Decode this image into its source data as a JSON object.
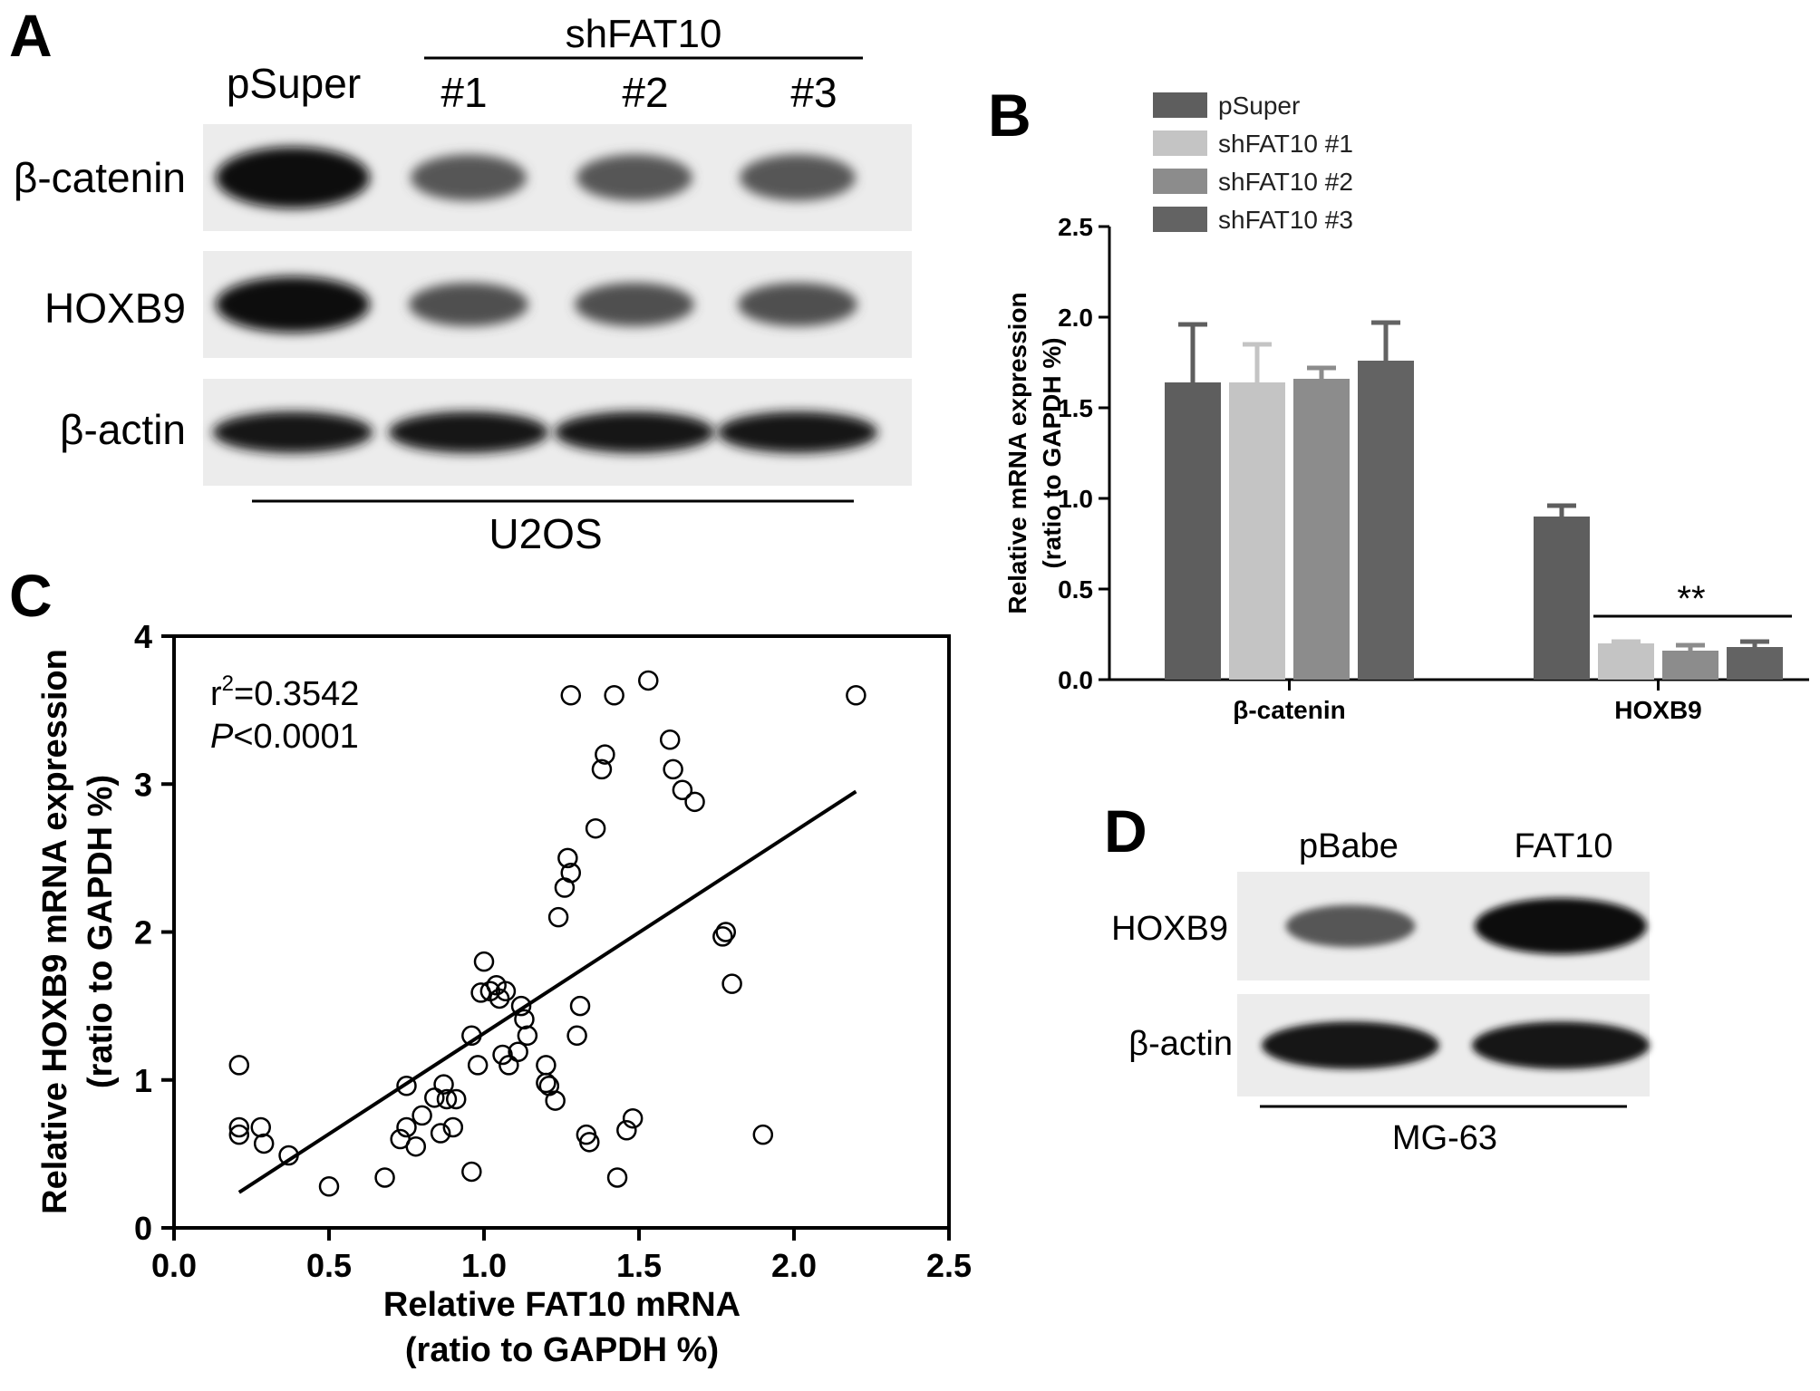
{
  "panels": {
    "A": {
      "letter": "A",
      "group_header": "shFAT10",
      "lanes": [
        "pSuper",
        "#1",
        "#2",
        "#3"
      ],
      "rows": [
        "β-catenin",
        "HOXB9",
        "β-actin"
      ],
      "cell_line": "U2OS",
      "band_intensity": {
        "β-catenin": [
          1.0,
          0.45,
          0.45,
          0.45
        ],
        "HOXB9": [
          1.0,
          0.5,
          0.5,
          0.5
        ],
        "β-actin": [
          0.9,
          0.9,
          0.9,
          0.9
        ]
      }
    },
    "B": {
      "letter": "B"
    },
    "C": {
      "letter": "C",
      "r2_prefix": "r",
      "r2_sup": "2",
      "r2_value": "=0.3542",
      "p_italic": "P",
      "p_value": "<0.0001"
    },
    "D": {
      "letter": "D",
      "lanes": [
        "pBabe",
        "FAT10"
      ],
      "rows": [
        "HOXB9",
        "β-actin"
      ],
      "cell_line": "MG-63",
      "band_intensity": {
        "HOXB9": [
          0.45,
          1.0
        ],
        "β-actin": [
          0.9,
          0.9
        ]
      }
    }
  },
  "chart_data": [
    {
      "panel": "B",
      "type": "bar",
      "categories": [
        "β-catenin",
        "HOXB9"
      ],
      "series": [
        {
          "name": "pSuper",
          "values": [
            1.64,
            0.9
          ],
          "errors": [
            0.32,
            0.06
          ],
          "color": "#5e5e5e"
        },
        {
          "name": "shFAT10 #1",
          "values": [
            1.64,
            0.2
          ],
          "errors": [
            0.21,
            0.01
          ],
          "color": "#c4c4c4"
        },
        {
          "name": "shFAT10 #2",
          "values": [
            1.66,
            0.16
          ],
          "errors": [
            0.06,
            0.03
          ],
          "color": "#8c8c8c"
        },
        {
          "name": "shFAT10 #3",
          "values": [
            1.76,
            0.18
          ],
          "errors": [
            0.21,
            0.03
          ],
          "color": "#636363"
        }
      ],
      "ylabel_line1": "Relative mRNA expression",
      "ylabel_line2": "(ratio to GAPDH %)",
      "ylim": [
        0,
        2.5
      ],
      "yticks": [
        "0.0",
        "0.5",
        "1.0",
        "1.5",
        "2.0",
        "2.5"
      ],
      "significance": "**",
      "legend_position": "top-left"
    },
    {
      "panel": "C",
      "type": "scatter",
      "xlabel_line1": "Relative FAT10 mRNA",
      "xlabel_line2": "(ratio to  GAPDH %)",
      "ylabel_line1": "Relative HOXB9 mRNA expression",
      "ylabel_line2": "(ratio to  GAPDH %)",
      "xlim": [
        0,
        2.5
      ],
      "ylim": [
        0,
        4
      ],
      "xticks": [
        "0.0",
        "0.5",
        "1.0",
        "1.5",
        "2.0",
        "2.5"
      ],
      "yticks": [
        "0",
        "1",
        "2",
        "3",
        "4"
      ],
      "regression": {
        "x": [
          0.21,
          2.2
        ],
        "y": [
          0.24,
          2.95
        ]
      },
      "points": [
        [
          0.21,
          1.1
        ],
        [
          0.21,
          0.68
        ],
        [
          0.21,
          0.63
        ],
        [
          0.28,
          0.68
        ],
        [
          0.29,
          0.57
        ],
        [
          0.37,
          0.49
        ],
        [
          0.5,
          0.28
        ],
        [
          0.68,
          0.34
        ],
        [
          0.73,
          0.6
        ],
        [
          0.75,
          0.68
        ],
        [
          0.75,
          0.96
        ],
        [
          0.78,
          0.55
        ],
        [
          0.8,
          0.76
        ],
        [
          0.84,
          0.88
        ],
        [
          0.86,
          0.64
        ],
        [
          0.87,
          0.97
        ],
        [
          0.88,
          0.87
        ],
        [
          0.9,
          0.68
        ],
        [
          0.91,
          0.87
        ],
        [
          0.96,
          0.38
        ],
        [
          0.96,
          1.3
        ],
        [
          0.98,
          1.1
        ],
        [
          0.99,
          1.59
        ],
        [
          1.0,
          1.8
        ],
        [
          1.02,
          1.6
        ],
        [
          1.04,
          1.64
        ],
        [
          1.05,
          1.55
        ],
        [
          1.06,
          1.17
        ],
        [
          1.07,
          1.6
        ],
        [
          1.08,
          1.1
        ],
        [
          1.11,
          1.19
        ],
        [
          1.12,
          1.5
        ],
        [
          1.13,
          1.41
        ],
        [
          1.14,
          1.3
        ],
        [
          1.2,
          1.1
        ],
        [
          1.2,
          0.98
        ],
        [
          1.21,
          0.96
        ],
        [
          1.23,
          0.86
        ],
        [
          1.24,
          2.1
        ],
        [
          1.26,
          2.3
        ],
        [
          1.27,
          2.5
        ],
        [
          1.28,
          2.4
        ],
        [
          1.28,
          3.6
        ],
        [
          1.3,
          1.3
        ],
        [
          1.31,
          1.5
        ],
        [
          1.33,
          0.63
        ],
        [
          1.34,
          0.58
        ],
        [
          1.36,
          2.7
        ],
        [
          1.38,
          3.1
        ],
        [
          1.39,
          3.2
        ],
        [
          1.42,
          3.6
        ],
        [
          1.43,
          0.34
        ],
        [
          1.46,
          0.66
        ],
        [
          1.48,
          0.74
        ],
        [
          1.53,
          3.7
        ],
        [
          1.6,
          3.3
        ],
        [
          1.61,
          3.1
        ],
        [
          1.64,
          2.96
        ],
        [
          1.68,
          2.88
        ],
        [
          1.77,
          1.97
        ],
        [
          1.78,
          2.0
        ],
        [
          1.8,
          1.65
        ],
        [
          1.9,
          0.63
        ],
        [
          2.2,
          3.6
        ]
      ]
    }
  ]
}
